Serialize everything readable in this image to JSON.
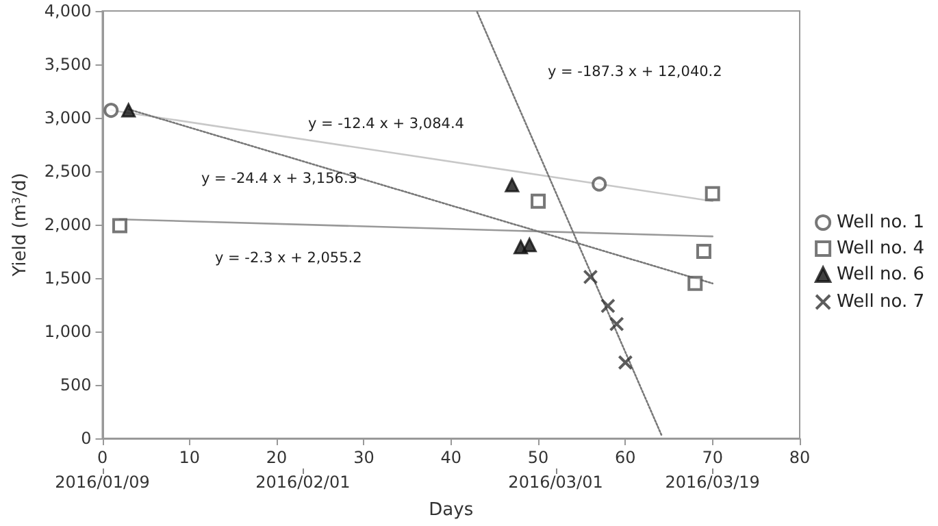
{
  "chart_data": {
    "type": "scatter",
    "xlabel": "Days",
    "ylabel": "Yield (m$^{3}$/d)",
    "xlim": [
      0,
      80
    ],
    "xticks": [
      0,
      10,
      20,
      30,
      40,
      50,
      60,
      70,
      80
    ],
    "ylim": [
      0,
      4000
    ],
    "yticks": [
      {
        "value": 0,
        "label": "0"
      },
      {
        "value": 500,
        "label": "500"
      },
      {
        "value": 1000,
        "label": "1,000"
      },
      {
        "value": 1500,
        "label": "1,500"
      },
      {
        "value": 2000,
        "label": "2,000"
      },
      {
        "value": 2500,
        "label": "2,500"
      },
      {
        "value": 3000,
        "label": "3,000"
      },
      {
        "value": 3500,
        "label": "3,500"
      },
      {
        "value": 4000,
        "label": "4,000"
      }
    ],
    "x2lim": [
      "2016-01-09",
      "2016-03-29"
    ],
    "x2ticks": [
      {
        "value": "2016-01-09",
        "label": "2016/01/09"
      },
      {
        "value": "2016-02-01",
        "label": "2016/02/01"
      },
      {
        "value": "2016-03-01",
        "label": "2016/03/01"
      },
      {
        "value": "2016-03-19",
        "label": "2016/03/19"
      }
    ],
    "grid": false,
    "legend": "right",
    "series": [
      {
        "name": "Well no. 1",
        "type": "scatter",
        "marker": "circle",
        "color": "#555555",
        "x": [
          1,
          57
        ],
        "values": [
          3070,
          2380
        ]
      },
      {
        "name": "Well no. 4",
        "type": "scatter",
        "marker": "square",
        "color": "#555555",
        "x": [
          2,
          50,
          70,
          69,
          68
        ],
        "values": [
          1990,
          2220,
          2290,
          1750,
          1450
        ]
      },
      {
        "name": "Well no. 6",
        "type": "scatter",
        "marker": "triangle",
        "color": "#111111",
        "x": [
          3,
          47,
          48,
          49
        ],
        "values": [
          3070,
          2370,
          1790,
          1810
        ]
      },
      {
        "name": "Well no. 7",
        "type": "scatter",
        "marker": "cross",
        "color": "#333333",
        "x": [
          56,
          58,
          59,
          60
        ],
        "values": [
          1510,
          1240,
          1070,
          710
        ]
      },
      {
        "type": "line",
        "marker": "none",
        "line_style": "solid",
        "color": "#c8c8c8",
        "x": [
          1,
          70
        ],
        "values": [
          3070,
          2220
        ]
      },
      {
        "type": "line",
        "marker": "none",
        "line_style": "solid",
        "color": "#999999",
        "x": [
          2,
          70
        ],
        "values": [
          2050,
          1890
        ]
      },
      {
        "type": "line",
        "marker": "none",
        "line_style": "dotted",
        "color": "#777777",
        "x": [
          3,
          70
        ],
        "values": [
          3080,
          1450
        ]
      },
      {
        "type": "line",
        "marker": "none",
        "line_style": "dotted",
        "color": "#777777",
        "x": [
          43,
          64.2
        ],
        "values": [
          3990,
          20
        ]
      }
    ],
    "annotations": [
      "y = -12.4 x + 3,084.4",
      "y = -24.4 x + 3,156.3",
      "y = -2.3 x + 2,055.2",
      "y = -187.3 x + 12,040.2"
    ]
  }
}
